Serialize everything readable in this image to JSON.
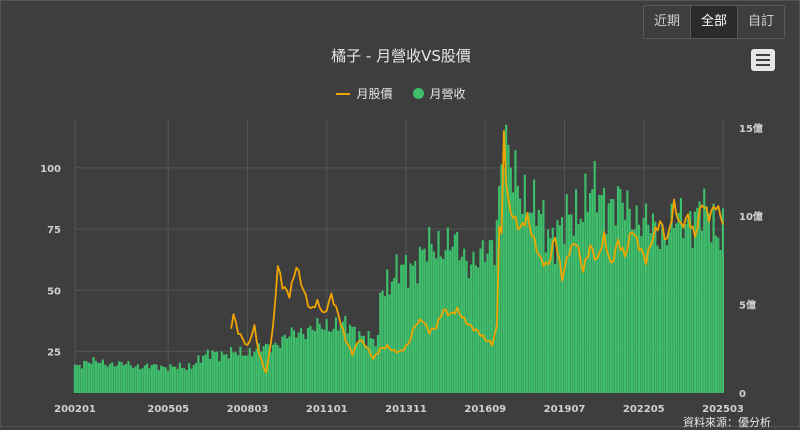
{
  "range_buttons": [
    "近期",
    "全部",
    "自訂"
  ],
  "active_range": 1,
  "title": "橘子 - 月營收VS股價",
  "legend": {
    "price": "月股價",
    "revenue": "月營收"
  },
  "source": "資料來源：優分析",
  "colors": {
    "price": "#f0a400",
    "revenue": "#3dbf6b",
    "background": "#3e3e3e",
    "grid": "#555555",
    "text": "#d0d0d0"
  },
  "icons": {
    "menu": "hamburger-menu-icon"
  },
  "chart_data": {
    "type": "bar+line",
    "title": "橘子 - 月營收VS股價",
    "x_start": "2002-01",
    "x_end": "2025-03",
    "x_tick_labels": [
      "200201",
      "200505",
      "200803",
      "201101",
      "201311",
      "201609",
      "201907",
      "202205",
      "202503"
    ],
    "left_axis": {
      "series": "月股價",
      "ticks": [
        25,
        50,
        75,
        100
      ],
      "ylim": [
        8,
        120
      ]
    },
    "right_axis": {
      "series": "月營收",
      "ticks": [
        "0",
        "5億",
        "10億",
        "15億"
      ],
      "ylim": [
        0,
        15.5
      ],
      "unit": "億"
    },
    "grid": true,
    "legend_position": "top-center",
    "series": [
      {
        "name": "月營收",
        "type": "bar",
        "axis": "right",
        "unit": "億",
        "keyframes": [
          [
            "2002-01",
            1.5
          ],
          [
            "2002-06",
            1.8
          ],
          [
            "2003-01",
            1.7
          ],
          [
            "2003-12",
            1.6
          ],
          [
            "2004-06",
            1.5
          ],
          [
            "2005-05",
            1.5
          ],
          [
            "2006-01",
            1.4
          ],
          [
            "2006-06",
            1.9
          ],
          [
            "2007-01",
            2.3
          ],
          [
            "2007-06",
            2.2
          ],
          [
            "2008-03",
            2.3
          ],
          [
            "2008-12",
            2.6
          ],
          [
            "2009-06",
            3.0
          ],
          [
            "2010-01",
            3.5
          ],
          [
            "2010-06",
            3.6
          ],
          [
            "2011-01",
            3.8
          ],
          [
            "2011-06",
            3.9
          ],
          [
            "2012-01",
            3.6
          ],
          [
            "2012-06",
            3.1
          ],
          [
            "2012-11",
            2.8
          ],
          [
            "2012-12",
            6.0
          ],
          [
            "2013-06",
            6.6
          ],
          [
            "2013-11",
            7.0
          ],
          [
            "2014-06",
            7.8
          ],
          [
            "2015-01",
            8.4
          ],
          [
            "2015-06",
            8.5
          ],
          [
            "2016-01",
            7.6
          ],
          [
            "2016-06",
            7.5
          ],
          [
            "2016-09",
            7.7
          ],
          [
            "2017-01",
            8.6
          ],
          [
            "2017-05",
            14.5
          ],
          [
            "2017-08",
            12.3
          ],
          [
            "2018-01",
            11.5
          ],
          [
            "2018-06",
            10.3
          ],
          [
            "2019-01",
            9.0
          ],
          [
            "2019-07",
            9.4
          ],
          [
            "2020-01",
            10.5
          ],
          [
            "2020-06",
            11.2
          ],
          [
            "2021-01",
            11.0
          ],
          [
            "2021-06",
            10.6
          ],
          [
            "2022-01",
            10.2
          ],
          [
            "2022-05",
            9.6
          ],
          [
            "2022-12",
            9.0
          ],
          [
            "2023-06",
            9.5
          ],
          [
            "2024-01",
            10.0
          ],
          [
            "2024-06",
            10.2
          ],
          [
            "2025-03",
            9.2
          ]
        ]
      },
      {
        "name": "月股價",
        "type": "line",
        "axis": "left",
        "start": "2007-08",
        "keyframes": [
          [
            "2007-08",
            35
          ],
          [
            "2007-09",
            40
          ],
          [
            "2007-11",
            33
          ],
          [
            "2008-01",
            30
          ],
          [
            "2008-03",
            27
          ],
          [
            "2008-06",
            35
          ],
          [
            "2008-08",
            24
          ],
          [
            "2008-11",
            16
          ],
          [
            "2009-02",
            35
          ],
          [
            "2009-04",
            60
          ],
          [
            "2009-06",
            52
          ],
          [
            "2009-09",
            48
          ],
          [
            "2009-12",
            60
          ],
          [
            "2010-03",
            50
          ],
          [
            "2010-06",
            42
          ],
          [
            "2010-09",
            45
          ],
          [
            "2010-12",
            40
          ],
          [
            "2011-03",
            48
          ],
          [
            "2011-06",
            40
          ],
          [
            "2011-09",
            30
          ],
          [
            "2011-12",
            24
          ],
          [
            "2012-03",
            30
          ],
          [
            "2012-06",
            27
          ],
          [
            "2012-09",
            22
          ],
          [
            "2012-12",
            26
          ],
          [
            "2013-03",
            27
          ],
          [
            "2013-06",
            25
          ],
          [
            "2013-09",
            25
          ],
          [
            "2013-12",
            28
          ],
          [
            "2014-03",
            36
          ],
          [
            "2014-06",
            38
          ],
          [
            "2014-09",
            33
          ],
          [
            "2014-12",
            35
          ],
          [
            "2015-03",
            42
          ],
          [
            "2015-06",
            40
          ],
          [
            "2015-09",
            42
          ],
          [
            "2015-12",
            38
          ],
          [
            "2016-03",
            35
          ],
          [
            "2016-06",
            33
          ],
          [
            "2016-09",
            30
          ],
          [
            "2016-12",
            28
          ],
          [
            "2017-02",
            35
          ],
          [
            "2017-03",
            78
          ],
          [
            "2017-04",
            72
          ],
          [
            "2017-05",
            115
          ],
          [
            "2017-06",
            95
          ],
          [
            "2017-07",
            85
          ],
          [
            "2017-09",
            80
          ],
          [
            "2017-12",
            75
          ],
          [
            "2018-03",
            80
          ],
          [
            "2018-06",
            70
          ],
          [
            "2018-09",
            62
          ],
          [
            "2018-12",
            60
          ],
          [
            "2019-03",
            72
          ],
          [
            "2019-06",
            55
          ],
          [
            "2019-09",
            66
          ],
          [
            "2019-12",
            70
          ],
          [
            "2020-03",
            58
          ],
          [
            "2020-06",
            68
          ],
          [
            "2020-09",
            62
          ],
          [
            "2020-12",
            72
          ],
          [
            "2021-03",
            60
          ],
          [
            "2021-06",
            70
          ],
          [
            "2021-09",
            64
          ],
          [
            "2021-12",
            75
          ],
          [
            "2022-03",
            68
          ],
          [
            "2022-06",
            62
          ],
          [
            "2022-09",
            72
          ],
          [
            "2022-12",
            78
          ],
          [
            "2023-03",
            70
          ],
          [
            "2023-06",
            85
          ],
          [
            "2023-09",
            76
          ],
          [
            "2023-12",
            80
          ],
          [
            "2024-03",
            72
          ],
          [
            "2024-06",
            86
          ],
          [
            "2024-09",
            80
          ],
          [
            "2024-12",
            85
          ],
          [
            "2025-03",
            78
          ]
        ]
      }
    ]
  }
}
